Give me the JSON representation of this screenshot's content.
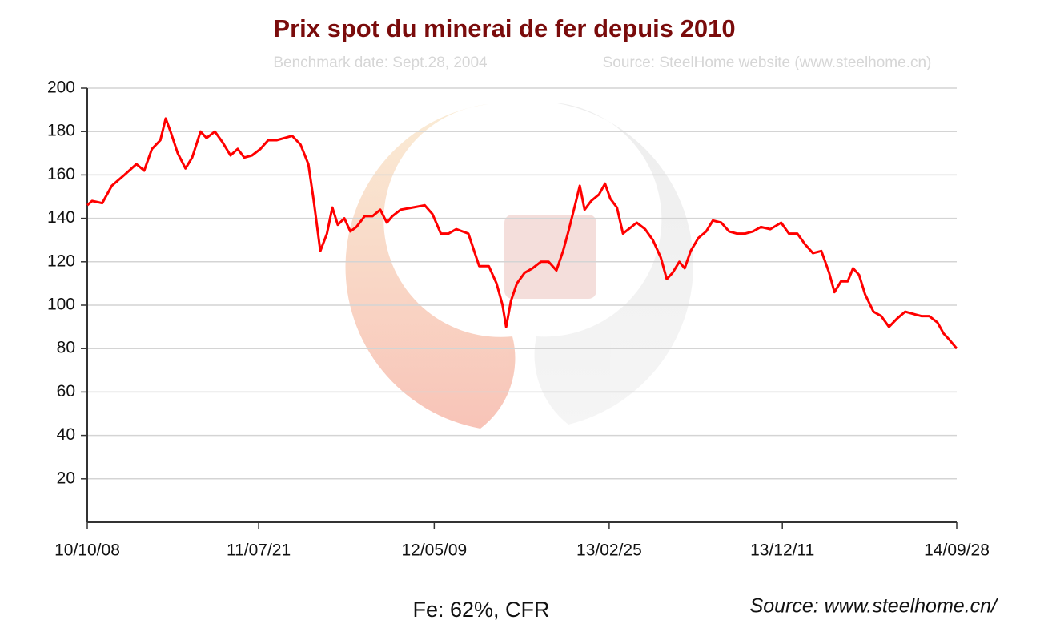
{
  "chart_data": {
    "type": "line",
    "title": "Prix spot du minerai de fer depuis 2010",
    "subtitle": [
      "Benchmark date: Sept.28, 2004",
      "Source: SteelHome website (www.steelhome.cn)"
    ],
    "annotations": [
      "Fe: 62%, CFR",
      "Source: www.steelhome.cn/"
    ],
    "color": "#ff0000",
    "grid": true,
    "ylim": [
      0,
      200
    ],
    "yticks": [
      20,
      40,
      60,
      80,
      100,
      120,
      140,
      160,
      180,
      200
    ],
    "xlim": [
      "10/10/08",
      "14/09/28"
    ],
    "xticks": [
      "10/10/08",
      "11/07/21",
      "12/05/09",
      "13/02/25",
      "13/12/11",
      "14/09/28"
    ],
    "x": [
      "10/10/08",
      "10/10/16",
      "10/11/02",
      "10/11/18",
      "10/12/09",
      "10/12/29",
      "11/01/11",
      "11/01/24",
      "11/02/07",
      "11/02/16",
      "11/02/24",
      "11/03/08",
      "11/03/21",
      "11/04/01",
      "11/04/15",
      "11/04/25",
      "11/05/09",
      "11/05/22",
      "11/06/04",
      "11/06/16",
      "11/06/27",
      "11/07/10",
      "11/07/24",
      "11/08/06",
      "11/08/20",
      "11/09/02",
      "11/09/15",
      "11/09/29",
      "11/10/12",
      "11/10/21",
      "11/11/01",
      "11/11/12",
      "11/11/21",
      "11/11/30",
      "11/12/11",
      "11/12/21",
      "11/12/31",
      "12/01/14",
      "12/01/27",
      "12/02/09",
      "12/02/20",
      "12/02/29",
      "12/03/14",
      "12/04/03",
      "12/04/23",
      "12/05/06",
      "12/05/20",
      "12/06/02",
      "12/06/15",
      "12/07/05",
      "12/07/23",
      "12/08/08",
      "12/08/21",
      "12/08/31",
      "12/09/06",
      "12/09/14",
      "12/09/24",
      "12/10/07",
      "12/10/20",
      "12/11/03",
      "12/11/16",
      "12/11/29",
      "12/12/10",
      "12/12/19",
      "12/12/30",
      "13/01/07",
      "13/01/15",
      "13/01/26",
      "13/02/08",
      "13/02/18",
      "13/02/27",
      "13/03/10",
      "13/03/20",
      "13/04/03",
      "13/04/12",
      "13/04/26",
      "13/05/09",
      "13/05/22",
      "13/06/01",
      "13/06/11",
      "13/06/22",
      "13/07/01",
      "13/07/11",
      "13/07/24",
      "13/08/06",
      "13/08/17",
      "13/08/31",
      "13/09/13",
      "13/09/26",
      "13/10/10",
      "13/10/23",
      "13/11/05",
      "13/11/21",
      "13/12/09",
      "13/12/22",
      "14/01/05",
      "14/01/18",
      "14/01/31",
      "14/02/14",
      "14/02/27",
      "14/03/08",
      "14/03/19",
      "14/03/30",
      "14/04/08",
      "14/04/18",
      "14/04/28",
      "14/05/12",
      "14/05/25",
      "14/06/07",
      "14/06/21",
      "14/07/04",
      "14/07/17",
      "14/07/31",
      "14/08/13",
      "14/08/27",
      "14/09/06",
      "14/09/16",
      "14/09/28"
    ],
    "values": [
      146,
      148,
      147,
      155,
      160,
      165,
      162,
      172,
      176,
      186,
      180,
      170,
      163,
      168,
      180,
      177,
      180,
      175,
      169,
      172,
      168,
      169,
      172,
      176,
      176,
      177,
      178,
      174,
      165,
      148,
      125,
      133,
      145,
      137,
      140,
      134,
      136,
      141,
      141,
      144,
      138,
      141,
      144,
      145,
      146,
      142,
      133,
      133,
      135,
      133,
      118,
      118,
      110,
      100,
      90,
      102,
      110,
      115,
      117,
      120,
      120,
      116,
      125,
      134,
      146,
      155,
      144,
      148,
      151,
      156,
      149,
      145,
      133,
      136,
      138,
      135,
      130,
      122,
      112,
      115,
      120,
      117,
      125,
      131,
      134,
      139,
      138,
      134,
      133,
      133,
      134,
      136,
      135,
      138,
      133,
      133,
      128,
      124,
      125,
      115,
      106,
      111,
      111,
      117,
      114,
      105,
      97,
      95,
      90,
      94,
      97,
      96,
      95,
      95,
      92,
      87,
      84,
      80
    ]
  }
}
